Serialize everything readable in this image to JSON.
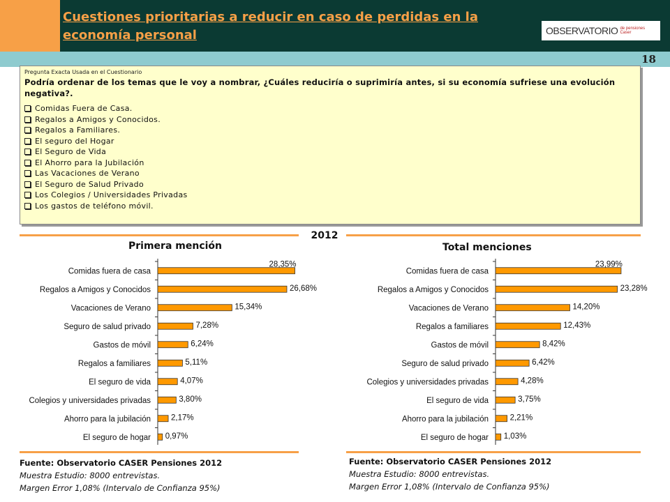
{
  "header": {
    "title": "Cuestiones prioritarias a reducir en caso de perdidas en la economía personal",
    "logo_main": "OBSERVATORIO",
    "logo_sub_1": "de pensiones",
    "logo_sub_2": "Caser",
    "page_number": "18"
  },
  "question": {
    "label": "Pregunta Exacta Usada en el Cuestionario",
    "text": "Podría ordenar de los temas que le voy a nombrar, ¿Cuáles reduciría o suprimiría antes, si su economía sufriese una evolución negativa?.",
    "items": [
      "Comidas Fuera de Casa.",
      "Regalos a Amigos y Conocidos.",
      "Regalos a Familiares.",
      "El seguro del Hogar",
      "El Seguro de Vida",
      "El Ahorro para la Jubilación",
      "Las Vacaciones de Verano",
      "El Seguro de Salud Privado",
      "Los Colegios / Universidades Privadas",
      "Los gastos de teléfono móvil."
    ]
  },
  "year": "2012",
  "colors": {
    "bar": "#FF9900",
    "accent": "#F7A047",
    "header": "#0B3A33",
    "teal": "#8ECBCF",
    "question_bg": "#FFFFCC"
  },
  "chart_data": [
    {
      "type": "bar",
      "orientation": "horizontal",
      "title": "Primera mención",
      "categories": [
        "Comidas fuera de casa",
        "Regalos a Amigos y Conocidos",
        "Vacaciones de Verano",
        "Seguro de salud privado",
        "Gastos de móvil",
        "Regalos a familiares",
        "El seguro de vida",
        "Colegios y universidades privadas",
        "Ahorro para la jubilación",
        "El seguro de hogar"
      ],
      "values": [
        28.35,
        26.68,
        15.34,
        7.28,
        6.24,
        5.11,
        4.07,
        3.8,
        2.17,
        0.97
      ],
      "labels": [
        "28,35%",
        "26,68%",
        "15,34%",
        "7,28%",
        "6,24%",
        "5,11%",
        "4,07%",
        "3,80%",
        "2,17%",
        "0,97%"
      ],
      "xlim": [
        0,
        30
      ],
      "grid": false
    },
    {
      "type": "bar",
      "orientation": "horizontal",
      "title": "Total menciones",
      "categories": [
        "Comidas fuera de casa",
        "Regalos a Amigos y Conocidos",
        "Vacaciones de Verano",
        "Regalos a familiares",
        "Gastos de móvil",
        "Seguro de salud privado",
        "Colegios y universidades privadas",
        "El seguro de vida",
        "Ahorro para la jubilación",
        "El seguro de hogar"
      ],
      "values": [
        23.99,
        23.28,
        14.2,
        12.43,
        8.42,
        6.42,
        4.28,
        3.75,
        2.21,
        1.03
      ],
      "labels": [
        "23,99%",
        "23,28%",
        "14,20%",
        "12,43%",
        "8,42%",
        "6,42%",
        "4,28%",
        "3,75%",
        "2,21%",
        "1,03%"
      ],
      "xlim": [
        0,
        26
      ],
      "grid": false
    }
  ],
  "footer": {
    "source": "Fuente: Observatorio CASER Pensiones 2012",
    "sample": "Muestra Estudio: 8000 entrevistas.",
    "margin": "Margen Error 1,08% (Intervalo de Confianza 95%)"
  }
}
